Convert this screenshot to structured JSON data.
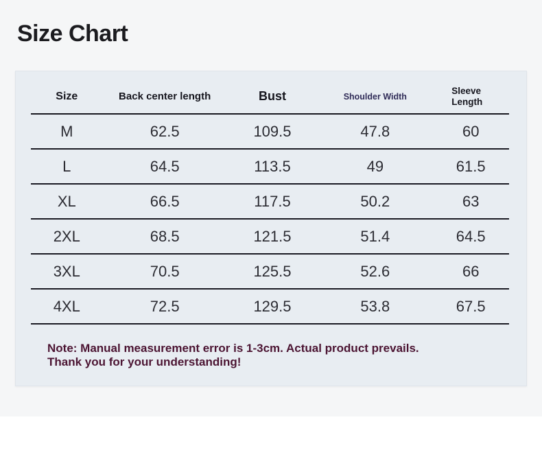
{
  "chart_data": {
    "type": "table",
    "title": "Size Chart",
    "columns": [
      "Size",
      "Back center length",
      "Bust",
      "Shoulder Width",
      "Sleeve Length"
    ],
    "rows": [
      [
        "M",
        "62.5",
        "109.5",
        "47.8",
        "60"
      ],
      [
        "L",
        "64.5",
        "113.5",
        "49",
        "61.5"
      ],
      [
        "XL",
        "66.5",
        "117.5",
        "50.2",
        "63"
      ],
      [
        "2XL",
        "68.5",
        "121.5",
        "51.4",
        "64.5"
      ],
      [
        "3XL",
        "70.5",
        "125.5",
        "52.6",
        "66"
      ],
      [
        "4XL",
        "72.5",
        "129.5",
        "53.8",
        "67.5"
      ]
    ]
  },
  "note": {
    "line1": "Note: Manual measurement error is 1-3cm. Actual product prevails.",
    "line2": "Thank you for your understanding!"
  },
  "colors": {
    "page_background": "#f5f6f7",
    "panel_background": "#e8edf2",
    "divider": "#1a1a22",
    "heading_text": "#1b1b1f",
    "header_text": "#15151d",
    "shoulder_width_header_text": "#302c58",
    "data_text": "#2b2b32",
    "note_text": "#4b1432",
    "bottom_strip": "#ffffff"
  }
}
